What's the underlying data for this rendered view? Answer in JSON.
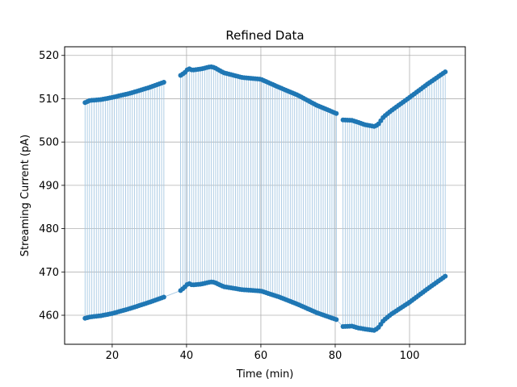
{
  "chart_data": {
    "type": "line",
    "title": "Refined Data",
    "xlabel": "Time (min)",
    "ylabel": "Streaming Current (pA)",
    "xlim": [
      7.2,
      115.0
    ],
    "ylim": [
      453.3,
      522.0
    ],
    "xticks": [
      20,
      40,
      60,
      80,
      100
    ],
    "yticks": [
      460,
      470,
      480,
      490,
      500,
      510,
      520
    ],
    "grid": true,
    "colors": {
      "line": "#a6c8e3",
      "marker": "#1f77b4",
      "grid": "#b0b0b0"
    },
    "segments": [
      {
        "x_start": 12.7,
        "x_end": 33.9,
        "samples": 36,
        "upper": [
          [
            12.7,
            509.1
          ],
          [
            14.0,
            509.6
          ],
          [
            17.0,
            509.8
          ],
          [
            20.0,
            510.3
          ],
          [
            25.0,
            511.3
          ],
          [
            30.0,
            512.6
          ],
          [
            33.9,
            513.8
          ]
        ],
        "lower": [
          [
            12.7,
            459.3
          ],
          [
            14.0,
            459.6
          ],
          [
            17.0,
            459.9
          ],
          [
            20.0,
            460.4
          ],
          [
            25.0,
            461.6
          ],
          [
            30.0,
            463.0
          ],
          [
            33.9,
            464.2
          ]
        ]
      },
      {
        "x_start": 38.4,
        "x_end": 80.3,
        "samples": 72,
        "upper": [
          [
            38.4,
            515.4
          ],
          [
            39.5,
            516.0
          ],
          [
            40.5,
            517.0
          ],
          [
            41.5,
            516.6
          ],
          [
            44.0,
            516.9
          ],
          [
            46.5,
            517.4
          ],
          [
            47.5,
            517.2
          ],
          [
            50.0,
            516.0
          ],
          [
            55.0,
            514.9
          ],
          [
            60.0,
            514.5
          ],
          [
            65.0,
            512.6
          ],
          [
            70.0,
            510.8
          ],
          [
            75.0,
            508.5
          ],
          [
            80.3,
            506.6
          ]
        ],
        "lower": [
          [
            38.4,
            465.7
          ],
          [
            39.5,
            466.5
          ],
          [
            40.5,
            467.4
          ],
          [
            41.5,
            467.0
          ],
          [
            44.0,
            467.2
          ],
          [
            46.5,
            467.7
          ],
          [
            47.5,
            467.6
          ],
          [
            50.0,
            466.6
          ],
          [
            55.0,
            465.9
          ],
          [
            60.0,
            465.6
          ],
          [
            65.0,
            464.2
          ],
          [
            70.0,
            462.5
          ],
          [
            75.0,
            460.6
          ],
          [
            80.3,
            459.0
          ]
        ]
      },
      {
        "x_start": 82.1,
        "x_end": 109.6,
        "samples": 47,
        "upper": [
          [
            82.1,
            505.1
          ],
          [
            84.5,
            505.0
          ],
          [
            86.0,
            504.6
          ],
          [
            88.0,
            504.0
          ],
          [
            90.5,
            503.6
          ],
          [
            91.5,
            504.0
          ],
          [
            93.0,
            505.8
          ],
          [
            95.0,
            507.2
          ],
          [
            100.0,
            510.3
          ],
          [
            105.0,
            513.5
          ],
          [
            109.6,
            516.2
          ]
        ],
        "lower": [
          [
            82.1,
            457.4
          ],
          [
            84.5,
            457.5
          ],
          [
            86.0,
            457.1
          ],
          [
            88.0,
            456.8
          ],
          [
            90.5,
            456.5
          ],
          [
            91.5,
            457.0
          ],
          [
            93.0,
            458.8
          ],
          [
            95.0,
            460.2
          ],
          [
            100.0,
            463.0
          ],
          [
            105.0,
            466.2
          ],
          [
            109.6,
            469.0
          ]
        ]
      }
    ]
  }
}
